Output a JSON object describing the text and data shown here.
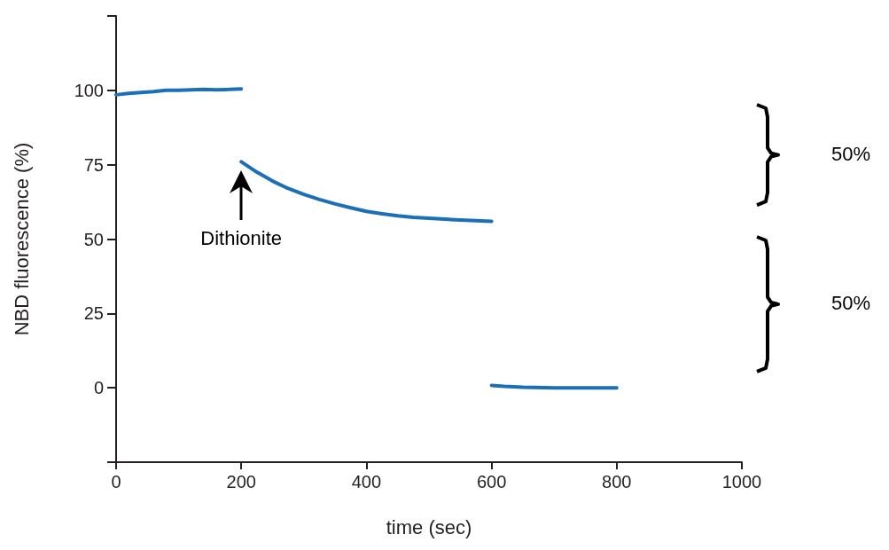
{
  "chart_data": {
    "type": "line",
    "xlabel": "time (sec)",
    "ylabel": "NBD fluorescence (%)",
    "xlim": [
      0,
      1000
    ],
    "xticks": [
      0,
      200,
      400,
      600,
      800,
      1000
    ],
    "ylim": [
      -25,
      125
    ],
    "yticks": [
      {
        "value": -25,
        "label": null
      },
      0,
      25,
      50,
      75,
      100,
      {
        "value": 125,
        "label": null
      }
    ],
    "grid": false,
    "marker": "none",
    "line_style": "solid",
    "series": [
      {
        "color": "#1b6fb8",
        "x": [
          0,
          20,
          40,
          60,
          80,
          100,
          120,
          140,
          160,
          180,
          200
        ],
        "values": [
          98.5,
          99,
          99.3,
          99.6,
          100,
          100,
          100.2,
          100.3,
          100.2,
          100.3,
          100.5
        ]
      },
      {
        "color": "#1b6fb8",
        "x": [
          200,
          225,
          250,
          275,
          300,
          325,
          350,
          375,
          400,
          425,
          450,
          475,
          500,
          525,
          550,
          575,
          600
        ],
        "values": [
          76,
          72.5,
          69.5,
          67,
          65,
          63.3,
          61.8,
          60.5,
          59.3,
          58.5,
          57.8,
          57.3,
          57,
          56.7,
          56.4,
          56.2,
          56
        ]
      },
      {
        "color": "#1b6fb8",
        "x": [
          600,
          620,
          650,
          700,
          750,
          800
        ],
        "values": [
          0.8,
          0.5,
          0.2,
          0,
          0,
          0
        ]
      }
    ],
    "annotations": [
      "Dithionite",
      "50%",
      "50%"
    ]
  }
}
